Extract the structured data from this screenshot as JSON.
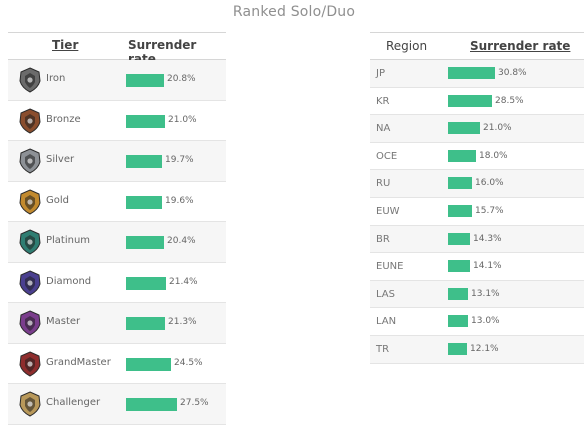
{
  "page_title": "Ranked Solo/Duo",
  "tier_table": {
    "headers": {
      "tier": "Tier",
      "rate": "Surrender rate"
    },
    "rows": [
      {
        "name": "Iron",
        "rate": "20.8%",
        "value": 20.8,
        "icon": "iron-emblem-icon",
        "color": "#6b6b6b"
      },
      {
        "name": "Bronze",
        "rate": "21.0%",
        "value": 21.0,
        "icon": "bronze-emblem-icon",
        "color": "#8a4e2e"
      },
      {
        "name": "Silver",
        "rate": "19.7%",
        "value": 19.7,
        "icon": "silver-emblem-icon",
        "color": "#8d9196"
      },
      {
        "name": "Gold",
        "rate": "19.6%",
        "value": 19.6,
        "icon": "gold-emblem-icon",
        "color": "#c28a2e"
      },
      {
        "name": "Platinum",
        "rate": "20.4%",
        "value": 20.4,
        "icon": "platinum-emblem-icon",
        "color": "#2f7d72"
      },
      {
        "name": "Diamond",
        "rate": "21.4%",
        "value": 21.4,
        "icon": "diamond-emblem-icon",
        "color": "#4a3f8f"
      },
      {
        "name": "Master",
        "rate": "21.3%",
        "value": 21.3,
        "icon": "master-emblem-icon",
        "color": "#7a3d8c"
      },
      {
        "name": "GrandMaster",
        "rate": "24.5%",
        "value": 24.5,
        "icon": "grandmaster-emblem-icon",
        "color": "#8e2d2d"
      },
      {
        "name": "Challenger",
        "rate": "27.5%",
        "value": 27.5,
        "icon": "challenger-emblem-icon",
        "color": "#b8985a"
      }
    ]
  },
  "region_table": {
    "headers": {
      "region": "Region",
      "rate": "Surrender rate"
    },
    "rows": [
      {
        "name": "JP",
        "rate": "30.8%",
        "value": 30.8
      },
      {
        "name": "KR",
        "rate": "28.5%",
        "value": 28.5
      },
      {
        "name": "NA",
        "rate": "21.0%",
        "value": 21.0
      },
      {
        "name": "OCE",
        "rate": "18.0%",
        "value": 18.0
      },
      {
        "name": "RU",
        "rate": "16.0%",
        "value": 16.0
      },
      {
        "name": "EUW",
        "rate": "15.7%",
        "value": 15.7
      },
      {
        "name": "BR",
        "rate": "14.3%",
        "value": 14.3
      },
      {
        "name": "EUNE",
        "rate": "14.1%",
        "value": 14.1
      },
      {
        "name": "LAS",
        "rate": "13.1%",
        "value": 13.1
      },
      {
        "name": "LAN",
        "rate": "13.0%",
        "value": 13.0
      },
      {
        "name": "TR",
        "rate": "12.1%",
        "value": 12.1
      }
    ]
  },
  "colors": {
    "bar": "#3ebf8a",
    "row_alt": "#f6f6f6",
    "title": "#8f8f8f"
  }
}
